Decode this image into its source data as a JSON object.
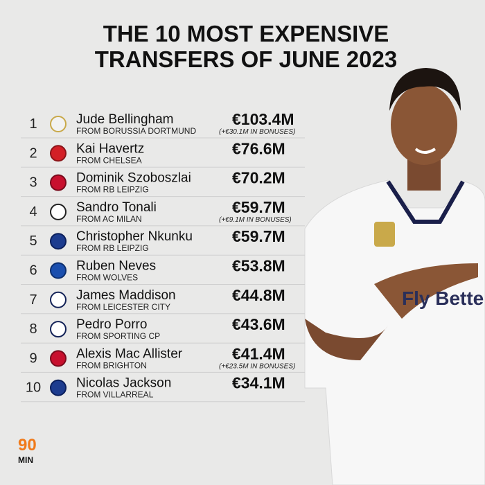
{
  "header": {
    "title_lines": [
      "THE 10 MOST EXPENSIVE",
      "TRANSFERS OF JUNE 2023"
    ]
  },
  "rows": [
    {
      "rank": "1",
      "name": "Jude Bellingham",
      "from": "FROM BORUSSIA DORTMUND",
      "fee": "€103.4M",
      "bonus": "(+€30.1M IN BONUSES)"
    },
    {
      "rank": "2",
      "name": "Kai Havertz",
      "from": "FROM CHELSEA",
      "fee": "€76.6M"
    },
    {
      "rank": "3",
      "name": "Dominik Szoboszlai",
      "from": "FROM RB LEIPZIG",
      "fee": "€70.2M"
    },
    {
      "rank": "4",
      "name": "Sandro Tonali",
      "from": "FROM AC MILAN",
      "fee": "€59.7M",
      "bonus": "(+€9.1M IN BONUSES)"
    },
    {
      "rank": "5",
      "name": "Christopher Nkunku",
      "from": "FROM RB LEIPZIG",
      "fee": "€59.7M"
    },
    {
      "rank": "6",
      "name": "Ruben Neves",
      "from": "FROM WOLVES",
      "fee": "€53.8M"
    },
    {
      "rank": "7",
      "name": "James Maddison",
      "from": "FROM LEICESTER CITY",
      "fee": "€44.8M"
    },
    {
      "rank": "8",
      "name": "Pedro Porro",
      "from": "FROM SPORTING CP",
      "fee": "€43.6M"
    },
    {
      "rank": "9",
      "name": "Alexis Mac Allister",
      "from": "FROM BRIGHTON",
      "fee": "€41.4M",
      "bonus": "(+€23.5M IN BONUSES)"
    },
    {
      "rank": "10",
      "name": "Nicolas Jackson",
      "from": "FROM VILLARREAL",
      "fee": "€34.1M"
    }
  ],
  "brand": {
    "top": "90",
    "bottom": "MIN"
  }
}
